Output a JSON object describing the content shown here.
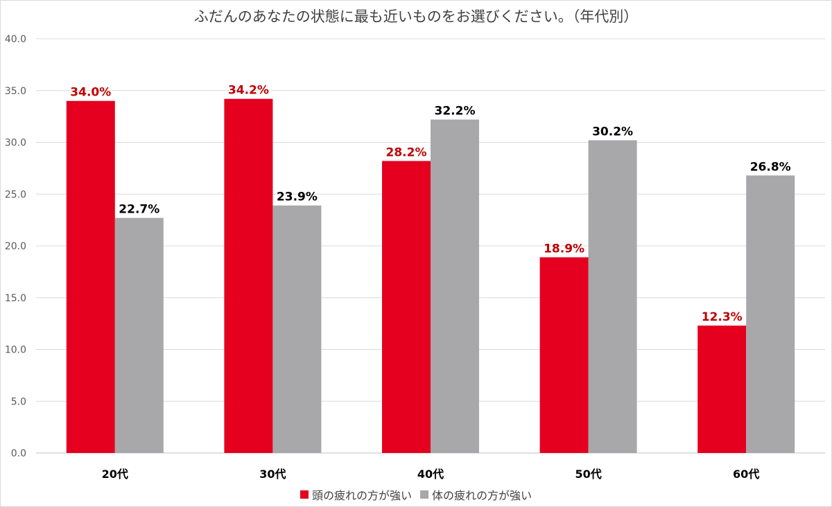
{
  "chart_data": {
    "type": "bar",
    "title": "ふだんのあなたの状態に最も近いものをお選びください。（年代別）",
    "categories": [
      "20代",
      "30代",
      "40代",
      "50代",
      "60代"
    ],
    "series": [
      {
        "name": "頭の疲れの方が強い",
        "values": [
          34.0,
          34.2,
          28.2,
          18.9,
          12.3
        ],
        "labels": [
          "34.0%",
          "34.2%",
          "28.2%",
          "18.9%",
          "12.3%"
        ],
        "color": "#e4001e",
        "label_color": "#c00000"
      },
      {
        "name": "体の疲れの方が強い",
        "values": [
          22.7,
          23.9,
          32.2,
          30.2,
          26.8
        ],
        "labels": [
          "22.7%",
          "23.9%",
          "32.2%",
          "30.2%",
          "26.8%"
        ],
        "color": "#a8a7aa",
        "label_color": "#000000"
      }
    ],
    "ylim": [
      0,
      40
    ],
    "yticks": [
      "0.0",
      "5.0",
      "10.0",
      "15.0",
      "20.0",
      "25.0",
      "30.0",
      "35.0",
      "40.0"
    ],
    "ytick_values": [
      0,
      5,
      10,
      15,
      20,
      25,
      30,
      35,
      40
    ],
    "grid": true,
    "legend_position": "bottom"
  }
}
